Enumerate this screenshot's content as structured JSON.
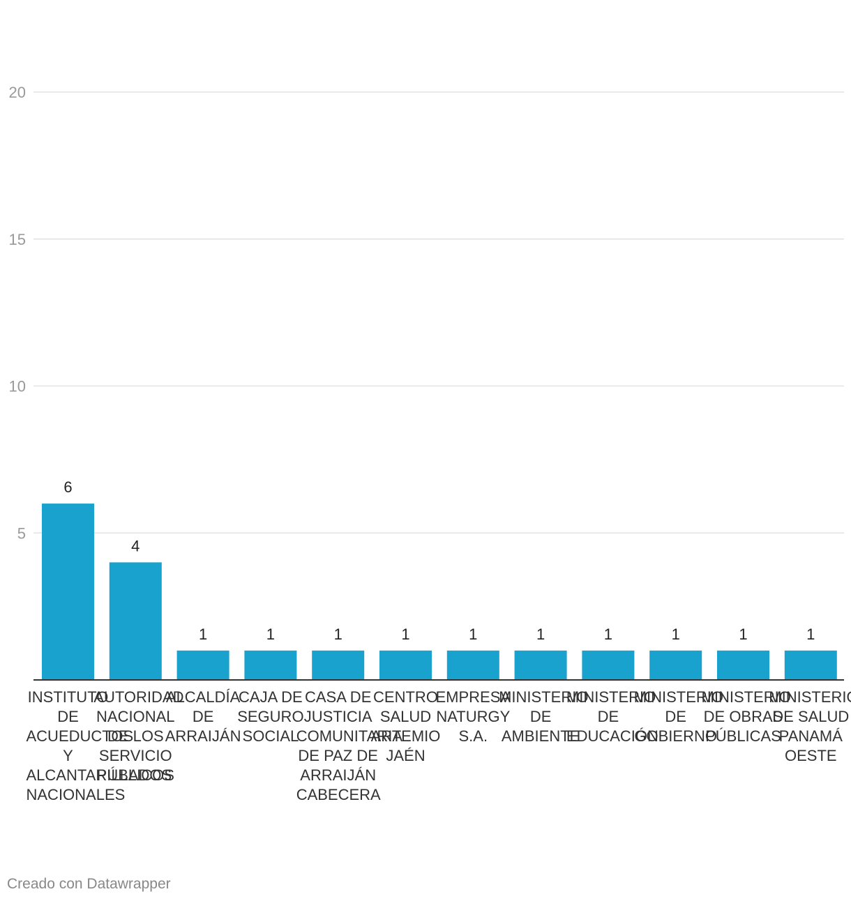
{
  "chart_data": {
    "type": "bar",
    "categories": [
      "INSTITUTO DE ACUEDUCTOS Y ALCANTARILLADOS NACIONALES",
      "AUTORIDAD NACIONAL DE LOS SERVICIO PÚBLICOS",
      "ALCALDÍA DE ARRAIJÁN",
      "CAJA DE SEGURO SOCIAL",
      "CASA DE JUSTICIA COMUNITARIA DE PAZ DE ARRAIJÁN CABECERA",
      "CENTRO SALUD ARTEMIO JAÉN",
      "EMPRESA NATURGY S.A.",
      "MINISTERIO DE AMBIENTE",
      "MINISTERIO DE EDUCACIÓN",
      "MINISTERIO DE GOBIERNO",
      "MINISTERIO DE OBRAS PÚBLICAS",
      "MINISTERIO DE SALUD PANAMÁ OESTE"
    ],
    "values": [
      6,
      4,
      1,
      1,
      1,
      1,
      1,
      1,
      1,
      1,
      1,
      1
    ],
    "value_labels": [
      "6",
      "4",
      "1",
      "1",
      "1",
      "1",
      "1",
      "1",
      "1",
      "1",
      "1",
      "1"
    ],
    "yticks": [
      "5",
      "10",
      "15",
      "20"
    ],
    "ylim": [
      0,
      20
    ],
    "grid": true,
    "bar_color": "#1aa2cf"
  },
  "footer": "Creado con Datawrapper"
}
